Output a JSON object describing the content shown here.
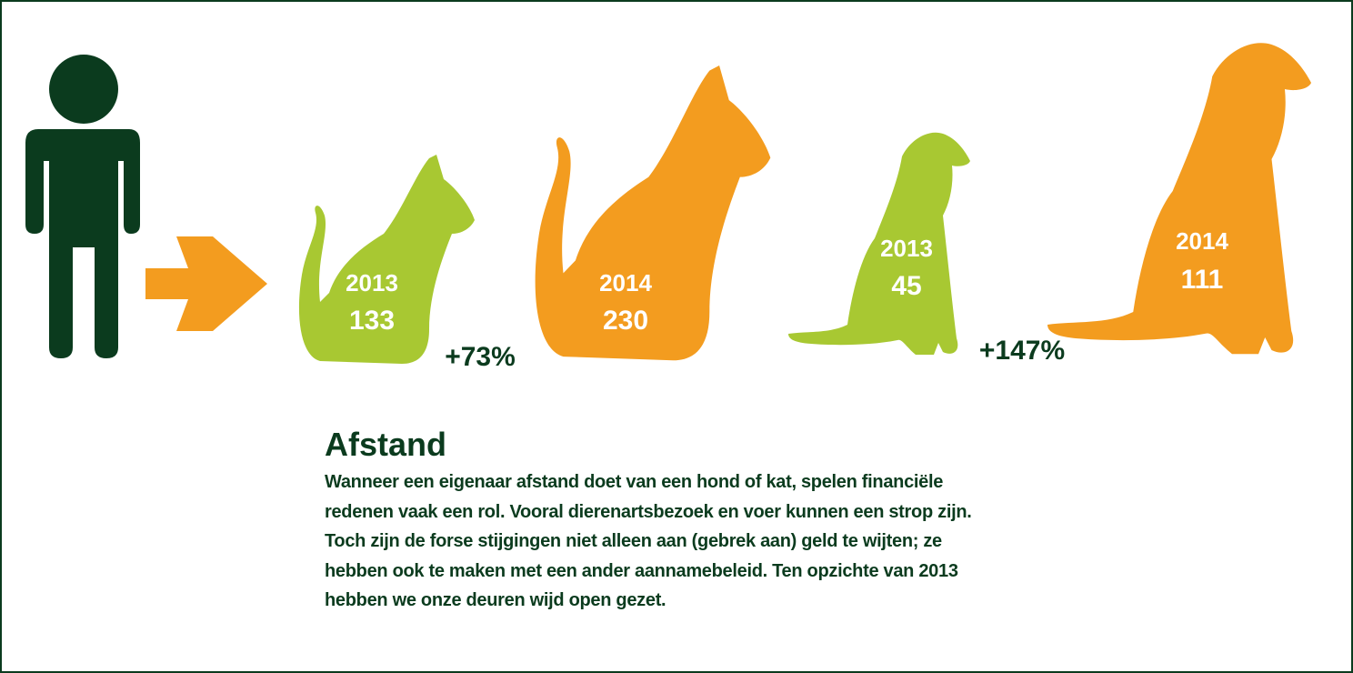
{
  "cats": [
    {
      "year": "2013",
      "count": "133"
    },
    {
      "year": "2014",
      "count": "230"
    }
  ],
  "dogs": [
    {
      "year": "2013",
      "count": "45"
    },
    {
      "year": "2014",
      "count": "111"
    }
  ],
  "changes": {
    "cats": "+73%",
    "dogs": "+147%"
  },
  "article": {
    "title": "Afstand",
    "lines": [
      "Wanneer een eigenaar afstand doet van een hond of kat, spelen financiële",
      "redenen vaak een rol. Vooral dierenartsbezoek en voer kunnen een strop zijn.",
      "Toch zijn de forse stijgingen niet alleen aan (gebrek aan) geld te wijten; ze",
      "hebben ook te maken met een ander aannamebeleid. Ten opzichte van 2013",
      "hebben we onze deuren wijd open gezet."
    ]
  }
}
